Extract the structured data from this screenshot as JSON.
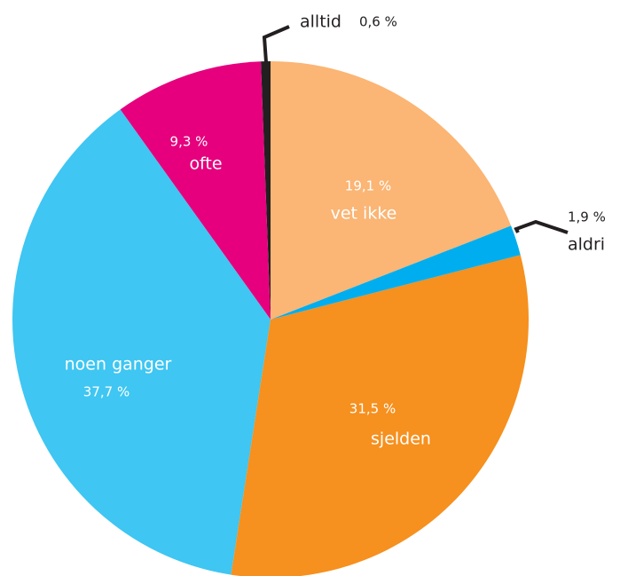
{
  "chart_data": {
    "type": "pie",
    "categories": [
      "vet ikke",
      "aldri",
      "sjelden",
      "noen ganger",
      "ofte",
      "alltid"
    ],
    "values": [
      19.1,
      1.9,
      31.5,
      37.7,
      9.3,
      0.6
    ],
    "value_labels": [
      "19,1 %",
      "1,9 %",
      "31,5 %",
      "37,7 %",
      "9,3 %",
      "0,6 %"
    ],
    "colors": [
      "#fbb574",
      "#00aeef",
      "#f6901e",
      "#3fc6f2",
      "#e6007e",
      "#231f20"
    ]
  }
}
